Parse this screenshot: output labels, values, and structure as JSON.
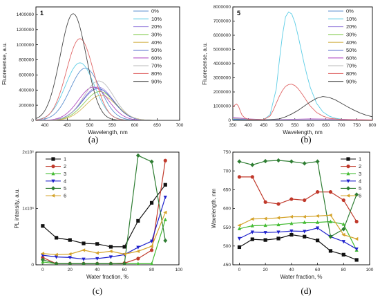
{
  "chart_data": [
    {
      "type": "line",
      "panel_label": "1",
      "caption": "(a)",
      "xlabel": "Wavelength, nm",
      "ylabel": "Fluoresense, a.u.",
      "xlim": [
        380,
        700
      ],
      "ylim": [
        0,
        1500000
      ],
      "xticks": [
        400,
        450,
        500,
        550,
        600,
        650,
        700
      ],
      "yticks": [
        0,
        200000,
        400000,
        600000,
        800000,
        1000000,
        1200000,
        1400000
      ],
      "ytick_labels": [
        "0",
        "200000",
        "400000",
        "600000",
        "800000",
        "1000000",
        "1200000",
        "1400000"
      ],
      "legend_position": "top-right",
      "series": [
        {
          "name": "0%",
          "color": "#5b8fcf",
          "peak": 490,
          "amp": 690000,
          "width": 60
        },
        {
          "name": "10%",
          "color": "#5ccde6",
          "peak": 478,
          "amp": 760000,
          "width": 58
        },
        {
          "name": "20%",
          "color": "#a08adf",
          "peak": 518,
          "amp": 440000,
          "width": 62
        },
        {
          "name": "30%",
          "color": "#88cc55",
          "peak": 522,
          "amp": 380000,
          "width": 62
        },
        {
          "name": "40%",
          "color": "#d7b85a",
          "peak": 525,
          "amp": 330000,
          "width": 62
        },
        {
          "name": "50%",
          "color": "#4a5fc6",
          "peak": 518,
          "amp": 420000,
          "width": 62
        },
        {
          "name": "60%",
          "color": "#b04cc2",
          "peak": 508,
          "amp": 440000,
          "width": 60
        },
        {
          "name": "70%",
          "color": "#bcbcbc",
          "peak": 520,
          "amp": 520000,
          "width": 60
        },
        {
          "name": "80%",
          "color": "#e06666",
          "peak": 478,
          "amp": 1080000,
          "width": 54
        },
        {
          "name": "90%",
          "color": "#444444",
          "peak": 463,
          "amp": 1410000,
          "width": 52
        }
      ]
    },
    {
      "type": "line",
      "panel_label": "5",
      "caption": "(b)",
      "xlabel": "Wavelength, nm",
      "ylabel": "Fluoresense, a.u.",
      "xlim": [
        350,
        800
      ],
      "ylim": [
        0,
        8000000
      ],
      "xticks": [
        350,
        400,
        450,
        500,
        550,
        600,
        650,
        700,
        750,
        800
      ],
      "yticks": [
        0,
        1000000,
        2000000,
        3000000,
        4000000,
        5000000,
        6000000,
        7000000,
        8000000
      ],
      "ytick_labels": [
        "0",
        "1000000",
        "2000000",
        "3000000",
        "4000000",
        "5000000",
        "6000000",
        "7000000",
        "8000000"
      ],
      "legend_position": "top-right",
      "series": [
        {
          "name": "0%",
          "color": "#5b8fcf",
          "x": [
            350,
            400,
            450,
            500,
            550,
            600,
            650,
            700,
            750,
            800
          ],
          "y": [
            100000,
            60000,
            30000,
            20000,
            20000,
            20000,
            20000,
            20000,
            20000,
            10000
          ]
        },
        {
          "name": "10%",
          "color": "#5ccde6",
          "x": [
            350,
            380,
            420,
            450,
            470,
            490,
            500,
            510,
            520,
            530,
            540,
            550,
            560,
            570,
            580,
            590,
            600,
            620,
            640,
            660,
            680,
            700,
            740,
            800
          ],
          "y": [
            50000,
            40000,
            20000,
            50000,
            400000,
            2200000,
            4200000,
            6000000,
            7300000,
            7650000,
            7500000,
            6900000,
            6000000,
            5000000,
            4000000,
            3100000,
            2300000,
            1200000,
            600000,
            300000,
            150000,
            80000,
            30000,
            10000
          ]
        },
        {
          "name": "20%",
          "color": "#a08adf",
          "x": [
            350,
            400,
            450,
            500,
            550,
            600,
            650,
            700,
            750,
            800
          ],
          "y": [
            150000,
            80000,
            40000,
            30000,
            30000,
            30000,
            30000,
            30000,
            20000,
            10000
          ]
        },
        {
          "name": "30%",
          "color": "#88cc55",
          "x": [
            350,
            400,
            450,
            500,
            550,
            600,
            650,
            700,
            750,
            800
          ],
          "y": [
            120000,
            70000,
            30000,
            30000,
            30000,
            30000,
            30000,
            30000,
            20000,
            10000
          ]
        },
        {
          "name": "40%",
          "color": "#d7b85a",
          "x": [
            350,
            400,
            450,
            500,
            550,
            600,
            650,
            700,
            750,
            800
          ],
          "y": [
            110000,
            60000,
            30000,
            20000,
            20000,
            20000,
            20000,
            20000,
            20000,
            10000
          ]
        },
        {
          "name": "50%",
          "color": "#4a5fc6",
          "x": [
            350,
            400,
            450,
            500,
            550,
            600,
            650,
            700,
            750,
            800
          ],
          "y": [
            90000,
            50000,
            30000,
            20000,
            20000,
            20000,
            20000,
            20000,
            20000,
            10000
          ]
        },
        {
          "name": "60%",
          "color": "#b04cc2",
          "x": [
            350,
            400,
            450,
            500,
            550,
            600,
            650,
            700,
            750,
            800
          ],
          "y": [
            200000,
            100000,
            50000,
            60000,
            80000,
            100000,
            90000,
            70000,
            50000,
            30000
          ]
        },
        {
          "name": "70%",
          "color": "#bcbcbc",
          "x": [
            350,
            400,
            450,
            500,
            550,
            600,
            650,
            700,
            750,
            800
          ],
          "y": [
            130000,
            80000,
            40000,
            40000,
            40000,
            40000,
            40000,
            40000,
            30000,
            20000
          ]
        },
        {
          "name": "80%",
          "color": "#e06666",
          "x": [
            350,
            355,
            362,
            368,
            375,
            380,
            390,
            400,
            420,
            450,
            470,
            480,
            490,
            500,
            510,
            520,
            530,
            540,
            550,
            560,
            570,
            580,
            590,
            600,
            620,
            640,
            660,
            700,
            800
          ],
          "y": [
            900000,
            1050000,
            1150000,
            1000000,
            600000,
            350000,
            150000,
            80000,
            40000,
            60000,
            300000,
            700000,
            1200000,
            1700000,
            2100000,
            2400000,
            2520000,
            2550000,
            2450000,
            2250000,
            1950000,
            1650000,
            1300000,
            1000000,
            550000,
            300000,
            150000,
            50000,
            20000
          ]
        },
        {
          "name": "90%",
          "color": "#444444",
          "x": [
            350,
            450,
            500,
            520,
            540,
            560,
            580,
            600,
            620,
            640,
            660,
            680,
            700,
            720,
            740,
            760,
            780,
            800
          ],
          "y": [
            0,
            30000,
            100000,
            250000,
            450000,
            700000,
            1000000,
            1300000,
            1550000,
            1680000,
            1620000,
            1450000,
            1200000,
            950000,
            720000,
            520000,
            360000,
            250000
          ]
        }
      ]
    },
    {
      "type": "line",
      "caption": "(c)",
      "xlabel": "Water fraction, %",
      "ylabel": "PL intensity, a.u.",
      "xlim": [
        -5,
        100
      ],
      "ylim": [
        0,
        2000000
      ],
      "xticks": [
        0,
        20,
        40,
        60,
        80,
        100
      ],
      "yticks": [
        0,
        1000000,
        2000000
      ],
      "ytick_labels": [
        "0",
        "1x10⁶",
        "2x10⁶"
      ],
      "legend_position": "top-left",
      "series": [
        {
          "name": "1",
          "color": "#111111",
          "marker": "square",
          "x": [
            0,
            10,
            20,
            30,
            40,
            50,
            60,
            70,
            80,
            90
          ],
          "y": [
            690000,
            480000,
            440000,
            380000,
            370000,
            320000,
            320000,
            780000,
            1100000,
            1420000
          ]
        },
        {
          "name": "2",
          "color": "#c0392b",
          "marker": "circle",
          "x": [
            0,
            10,
            20,
            30,
            40,
            50,
            60,
            70,
            80,
            90
          ],
          "y": [
            130000,
            20000,
            20000,
            20000,
            20000,
            20000,
            30000,
            110000,
            260000,
            1850000
          ]
        },
        {
          "name": "3",
          "color": "#44bb33",
          "marker": "triangle-up",
          "x": [
            0,
            10,
            20,
            30,
            40,
            50,
            60,
            70,
            80,
            90
          ],
          "y": [
            50000,
            20000,
            20000,
            20000,
            20000,
            20000,
            20000,
            20000,
            20000,
            800000
          ]
        },
        {
          "name": "4",
          "color": "#1f22cc",
          "marker": "triangle-down",
          "x": [
            0,
            10,
            20,
            30,
            40,
            50,
            60,
            70,
            80,
            90
          ],
          "y": [
            170000,
            140000,
            130000,
            100000,
            110000,
            140000,
            180000,
            310000,
            420000,
            1200000
          ]
        },
        {
          "name": "5",
          "color": "#2e7d32",
          "marker": "diamond",
          "x": [
            0,
            10,
            20,
            30,
            40,
            50,
            60,
            70,
            80,
            90
          ],
          "y": [
            90000,
            20000,
            20000,
            20000,
            20000,
            20000,
            20000,
            1940000,
            1830000,
            430000
          ]
        },
        {
          "name": "6",
          "color": "#d4a32a",
          "marker": "triangle-left",
          "x": [
            0,
            10,
            20,
            30,
            40,
            50,
            60,
            70,
            80,
            90
          ],
          "y": [
            200000,
            180000,
            190000,
            260000,
            210000,
            240000,
            190000,
            240000,
            330000,
            930000
          ]
        }
      ]
    },
    {
      "type": "line",
      "caption": "(d)",
      "xlabel": "Water fraction, %",
      "ylabel": "Wavelength, nm",
      "xlim": [
        -5,
        100
      ],
      "ylim": [
        450,
        750
      ],
      "xticks": [
        0,
        20,
        40,
        60,
        80,
        100
      ],
      "yticks": [
        450,
        500,
        550,
        600,
        650,
        700,
        750
      ],
      "ytick_labels": [
        "450",
        "500",
        "550",
        "600",
        "650",
        "700",
        "750"
      ],
      "legend_position": "top-right",
      "series": [
        {
          "name": "1",
          "color": "#111111",
          "marker": "square",
          "x": [
            0,
            10,
            20,
            30,
            40,
            50,
            60,
            70,
            80,
            90
          ],
          "y": [
            497,
            518,
            516,
            520,
            530,
            525,
            515,
            487,
            477,
            463
          ]
        },
        {
          "name": "2",
          "color": "#c0392b",
          "marker": "circle",
          "x": [
            0,
            10,
            20,
            30,
            40,
            50,
            60,
            70,
            80,
            90
          ],
          "y": [
            684,
            684,
            617,
            612,
            625,
            622,
            644,
            644,
            622,
            565
          ]
        },
        {
          "name": "3",
          "color": "#44bb33",
          "marker": "triangle-up",
          "x": [
            0,
            10,
            20,
            30,
            40,
            50,
            60,
            70,
            80,
            90
          ],
          "y": [
            546,
            554,
            555,
            557,
            560,
            563,
            563,
            565,
            558,
            489
          ]
        },
        {
          "name": "4",
          "color": "#1f22cc",
          "marker": "triangle-down",
          "x": [
            0,
            10,
            20,
            30,
            40,
            50,
            60,
            70,
            80,
            90
          ],
          "y": [
            520,
            537,
            536,
            537,
            540,
            539,
            548,
            525,
            512,
            492
          ]
        },
        {
          "name": "5",
          "color": "#2e7d32",
          "marker": "diamond",
          "x": [
            0,
            10,
            20,
            30,
            40,
            50,
            60,
            70,
            80,
            90
          ],
          "y": [
            725,
            716,
            726,
            728,
            725,
            720,
            725,
            525,
            545,
            637
          ]
        },
        {
          "name": "6",
          "color": "#d4a32a",
          "marker": "triangle-left",
          "x": [
            0,
            10,
            20,
            30,
            40,
            50,
            60,
            70,
            80,
            90
          ],
          "y": [
            555,
            572,
            573,
            575,
            578,
            578,
            580,
            582,
            530,
            519
          ]
        }
      ]
    }
  ]
}
